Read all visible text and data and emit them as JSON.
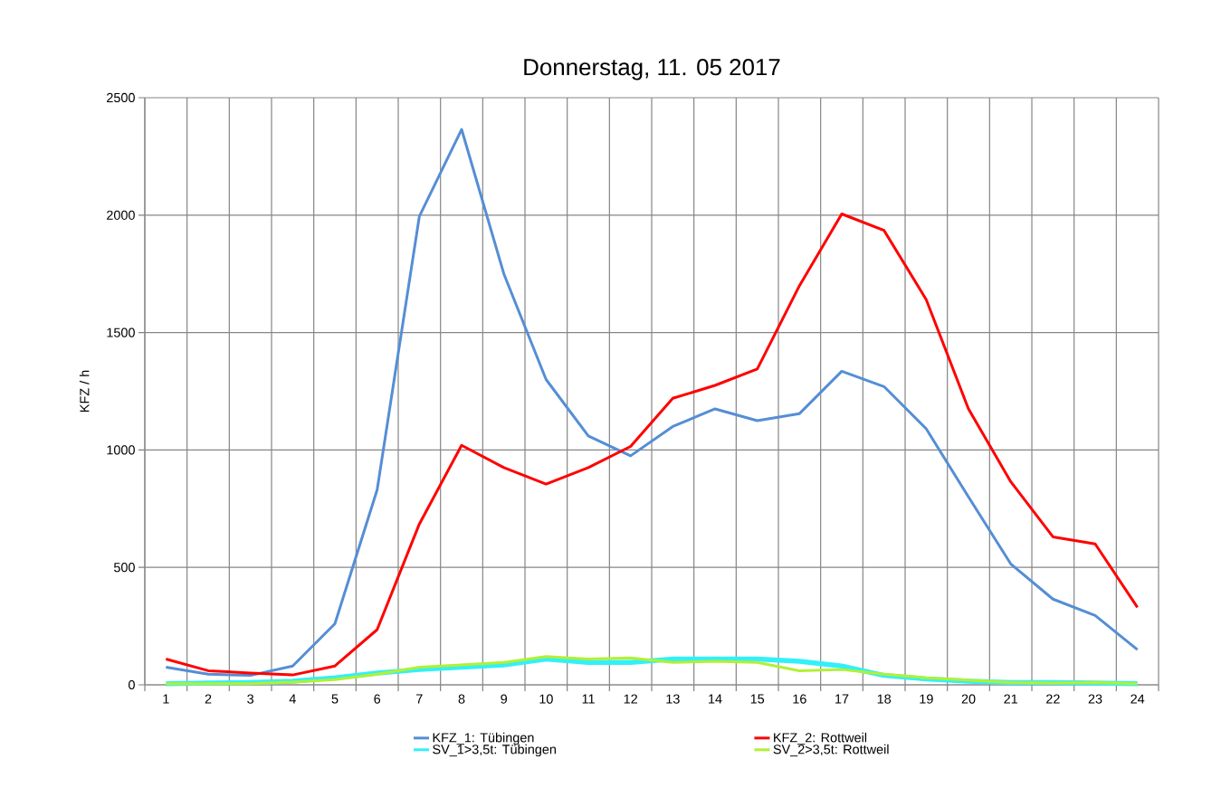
{
  "chart_data": {
    "type": "line",
    "title": "Donnerstag, 11. 05 2017",
    "ylabel": "KFZ / h",
    "categories": [
      "1",
      "2",
      "3",
      "4",
      "5",
      "6",
      "7",
      "8",
      "9",
      "10",
      "11",
      "12",
      "13",
      "14",
      "15",
      "16",
      "17",
      "18",
      "19",
      "20",
      "21",
      "22",
      "23",
      "24"
    ],
    "ylim": [
      0,
      2500
    ],
    "yticks": [
      0,
      500,
      1000,
      1500,
      2000,
      2500
    ],
    "grid": true,
    "legend": "bottom",
    "marker": "none",
    "line_style": "solid",
    "series": [
      {
        "name": "KFZ_1: Tübingen",
        "color": "#558ed5",
        "values": [
          75,
          45,
          40,
          80,
          260,
          830,
          1995,
          2365,
          1750,
          1300,
          1060,
          975,
          1100,
          1175,
          1125,
          1155,
          1335,
          1270,
          1090,
          800,
          515,
          365,
          295,
          150
        ]
      },
      {
        "name": "KFZ_2: Rottweil",
        "color": "#ff0000",
        "values": [
          110,
          60,
          50,
          42,
          80,
          235,
          685,
          1020,
          925,
          855,
          925,
          1015,
          1220,
          1275,
          1345,
          1700,
          2005,
          1935,
          1640,
          1175,
          865,
          630,
          600,
          330
        ]
      },
      {
        "name": "SV_1>3,5t: Tübingen",
        "color": "#33f0f8",
        "values": [
          5,
          8,
          10,
          15,
          30,
          50,
          65,
          75,
          85,
          110,
          95,
          95,
          110,
          110,
          110,
          100,
          80,
          40,
          25,
          15,
          10,
          10,
          8,
          5
        ]
      },
      {
        "name": "SV_2>3,5t: Rottweil",
        "color": "#b2f034",
        "values": [
          5,
          5,
          5,
          12,
          22,
          45,
          75,
          85,
          95,
          120,
          110,
          115,
          95,
          100,
          95,
          60,
          65,
          45,
          30,
          20,
          10,
          8,
          10,
          5
        ]
      }
    ]
  }
}
